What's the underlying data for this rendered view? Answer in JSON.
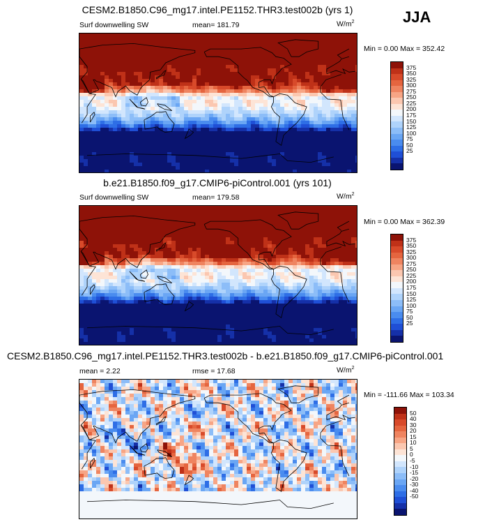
{
  "season": "JJA",
  "colors": {
    "abs_scale": [
      "#0a1470",
      "#1530a8",
      "#1f4fd6",
      "#2e6ee6",
      "#4a8cef",
      "#6aa6f4",
      "#8cbdf8",
      "#afd3fb",
      "#d2e6fd",
      "#f3f7fb",
      "#fde4d6",
      "#fbc7b0",
      "#f7a585",
      "#ef8460",
      "#e5653f",
      "#d84a2a",
      "#bf3118",
      "#8e1208"
    ],
    "diff_scale": [
      "#0a1470",
      "#1530a8",
      "#1f4fd6",
      "#2e6ee6",
      "#4a8cef",
      "#6aa6f4",
      "#8cbdf8",
      "#afd3fb",
      "#d2e6fd",
      "#f3f7fb",
      "#fde4d6",
      "#fbc7b0",
      "#f7a585",
      "#ef8460",
      "#e5653f",
      "#d84a2a",
      "#bf3118",
      "#8e1208"
    ]
  },
  "panels": [
    {
      "title": "CESM2.B1850.C96_mg17.intel.PE1152.THR3.test002b (yrs 1)",
      "variable": "Surf downwelling SW",
      "mean_text": "mean= 181.79",
      "units": "W/m",
      "units_exp": "2",
      "minmax": "Min =   0.00 Max = 352.42",
      "colorbar_labels": [
        "375",
        "350",
        "325",
        "300",
        "275",
        "250",
        "225",
        "200",
        "175",
        "150",
        "125",
        "100",
        "75",
        "50",
        "25"
      ]
    },
    {
      "title": "b.e21.B1850.f09_g17.CMIP6-piControl.001 (yrs 101)",
      "variable": "Surf downwelling SW",
      "mean_text": "mean= 179.58",
      "units": "W/m",
      "units_exp": "2",
      "minmax": "Min =   0.00 Max = 362.39",
      "colorbar_labels": [
        "375",
        "350",
        "325",
        "300",
        "275",
        "250",
        "225",
        "200",
        "175",
        "150",
        "125",
        "100",
        "75",
        "50",
        "25"
      ]
    },
    {
      "title": "CESM2.B1850.C96_mg17.intel.PE1152.THR3.test002b - b.e21.B1850.f09_g17.CMIP6-piControl.001",
      "mean_text": "mean =   2.22",
      "rmse_text": "rmse =  17.68",
      "units": "W/m",
      "units_exp": "2",
      "minmax": "Min = -111.66 Max = 103.34",
      "colorbar_labels": [
        "50",
        "40",
        "30",
        "20",
        "15",
        "10",
        "5",
        "0",
        "-5",
        "-10",
        "-15",
        "-20",
        "-30",
        "-40",
        "-50"
      ]
    }
  ]
}
